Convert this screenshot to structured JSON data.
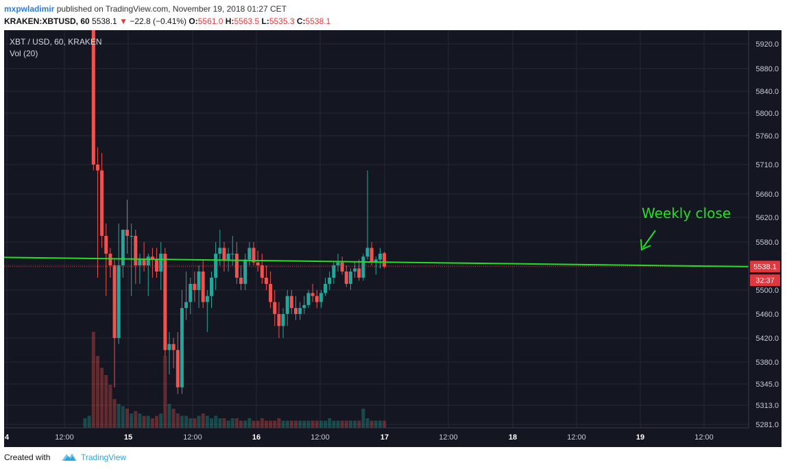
{
  "header": {
    "author": "mxpwladimir",
    "published_text": "published on TradingView.com, November 19, 2018 01:27 CET",
    "symbol": "KRAKEN:XBTUSD, 60",
    "last": "5538.1",
    "change": "−22.8 (−0.41%)",
    "open_label": "O:",
    "open": "5561.0",
    "high_label": "H:",
    "high": "5563.5",
    "low_label": "L:",
    "low": "5535.3",
    "close_label": "C:",
    "close": "5538.1"
  },
  "legend": {
    "title": "XBT / USD, 60, KRAKEN",
    "volume": "Vol (20)"
  },
  "footer": {
    "created_with": "Created with",
    "brand": "TradingView"
  },
  "colors": {
    "background": "#141722",
    "grid": "#262a36",
    "up": "#26a69a",
    "down": "#ef5350",
    "trendline": "#22e022",
    "annotation": "#22e022",
    "price_tag": "#e0383e"
  },
  "chart_data": {
    "type": "candlestick",
    "price_axis_ticks": [
      5920,
      5880,
      5840,
      5800,
      5760,
      5710,
      5660,
      5620,
      5580,
      5540,
      5500,
      5460,
      5420,
      5380,
      5345,
      5313,
      5281
    ],
    "price_axis_labels": [
      "5920.0",
      "5880.0",
      "5840.0",
      "5800.0",
      "5760.0",
      "5710.0",
      "5660.0",
      "5620.0",
      "5580.0",
      "5540.0",
      "5500.0",
      "5460.0",
      "5420.0",
      "5380.0",
      "5345.0",
      "5313.0",
      "5281.0"
    ],
    "time_axis_labels": [
      "4",
      "12:00",
      "15",
      "12:00",
      "16",
      "12:00",
      "17",
      "12:00",
      "18",
      "12:00",
      "19",
      "12:00"
    ],
    "current_price_label": "5538.1",
    "countdown_label": "32:37",
    "annotation": {
      "text": "Weekly close",
      "price": 5560
    },
    "trendline": {
      "from": {
        "bar": -34,
        "price": 5555
      },
      "to": {
        "bar": 250,
        "price": 5530
      }
    },
    "volume_shown": true,
    "candles": [
      [
        0,
        0,
        0,
        0
      ],
      [
        0,
        0,
        0,
        0
      ],
      [
        5980,
        6000,
        5700,
        5710
      ],
      [
        5710,
        5740,
        5520,
        5700
      ],
      [
        5700,
        5730,
        5570,
        5590
      ],
      [
        5590,
        5610,
        5490,
        5560
      ],
      [
        5560,
        5570,
        5520,
        5540
      ],
      [
        5540,
        5550,
        5340,
        5420
      ],
      [
        5420,
        5610,
        5410,
        5540
      ],
      [
        5540,
        5600,
        5520,
        5600
      ],
      [
        5600,
        5650,
        5560,
        5590
      ],
      [
        5590,
        5610,
        5490,
        5590
      ],
      [
        5590,
        5600,
        5510,
        5540
      ],
      [
        5540,
        5560,
        5510,
        5550
      ],
      [
        5550,
        5580,
        5530,
        5540
      ],
      [
        5540,
        5560,
        5490,
        5555
      ],
      [
        5555,
        5570,
        5520,
        5550
      ],
      [
        5550,
        5570,
        5520,
        5530
      ],
      [
        5530,
        5580,
        5500,
        5560
      ],
      [
        5560,
        5570,
        5390,
        5400
      ],
      [
        5400,
        5430,
        5360,
        5410
      ],
      [
        5410,
        5420,
        5370,
        5400
      ],
      [
        5400,
        5430,
        5330,
        5340
      ],
      [
        5340,
        5500,
        5330,
        5470
      ],
      [
        5470,
        5530,
        5450,
        5480
      ],
      [
        5480,
        5520,
        5460,
        5510
      ],
      [
        5510,
        5530,
        5480,
        5500
      ],
      [
        5500,
        5540,
        5470,
        5530
      ],
      [
        5530,
        5550,
        5470,
        5480
      ],
      [
        5480,
        5500,
        5430,
        5490
      ],
      [
        5490,
        5530,
        5470,
        5520
      ],
      [
        5520,
        5580,
        5500,
        5560
      ],
      [
        5560,
        5600,
        5540,
        5570
      ],
      [
        5570,
        5580,
        5530,
        5550
      ],
      [
        5550,
        5570,
        5530,
        5560
      ],
      [
        5560,
        5590,
        5540,
        5560
      ],
      [
        5560,
        5580,
        5510,
        5520
      ],
      [
        5520,
        5540,
        5500,
        5510
      ],
      [
        5510,
        5560,
        5500,
        5550
      ],
      [
        5550,
        5580,
        5540,
        5570
      ],
      [
        5570,
        5580,
        5540,
        5545
      ],
      [
        5545,
        5565,
        5530,
        5540
      ],
      [
        5540,
        5560,
        5510,
        5520
      ],
      [
        5520,
        5540,
        5500,
        5510
      ],
      [
        5510,
        5530,
        5470,
        5480
      ],
      [
        5480,
        5500,
        5440,
        5460
      ],
      [
        5460,
        5480,
        5420,
        5440
      ],
      [
        5440,
        5470,
        5420,
        5460
      ],
      [
        5460,
        5500,
        5440,
        5490
      ],
      [
        5490,
        5500,
        5460,
        5470
      ],
      [
        5470,
        5490,
        5450,
        5460
      ],
      [
        5460,
        5480,
        5450,
        5470
      ],
      [
        5470,
        5490,
        5460,
        5475
      ],
      [
        5475,
        5500,
        5470,
        5495
      ],
      [
        5495,
        5510,
        5480,
        5490
      ],
      [
        5490,
        5500,
        5470,
        5480
      ],
      [
        5480,
        5500,
        5470,
        5495
      ],
      [
        5495,
        5520,
        5490,
        5510
      ],
      [
        5510,
        5530,
        5500,
        5520
      ],
      [
        5520,
        5545,
        5510,
        5540
      ],
      [
        5540,
        5560,
        5530,
        5545
      ],
      [
        5545,
        5555,
        5525,
        5530
      ],
      [
        5530,
        5540,
        5505,
        5510
      ],
      [
        5510,
        5535,
        5500,
        5530
      ],
      [
        5530,
        5545,
        5520,
        5535
      ],
      [
        5535,
        5550,
        5515,
        5520
      ],
      [
        5520,
        5560,
        5515,
        5555
      ],
      [
        5555,
        5700,
        5550,
        5570
      ],
      [
        5570,
        5580,
        5540,
        5545
      ],
      [
        5545,
        5555,
        5525,
        5550
      ],
      [
        5550,
        5570,
        5535,
        5560
      ],
      [
        5561,
        5563.5,
        5535.3,
        5538.1
      ]
    ],
    "volumes": [
      4,
      5,
      40,
      30,
      25,
      22,
      18,
      12,
      10,
      9,
      8,
      6,
      7,
      6,
      5,
      5,
      4,
      5,
      6,
      30,
      10,
      8,
      6,
      5,
      5,
      4,
      4,
      5,
      6,
      5,
      4,
      5,
      4,
      4,
      3,
      4,
      4,
      3,
      3,
      4,
      3,
      3,
      4,
      3,
      3,
      3,
      4,
      3,
      3,
      3,
      3,
      3,
      3,
      3,
      3,
      3,
      3,
      3,
      4,
      3,
      3,
      3,
      3,
      3,
      3,
      3,
      8,
      4,
      3,
      3,
      3,
      3
    ]
  }
}
